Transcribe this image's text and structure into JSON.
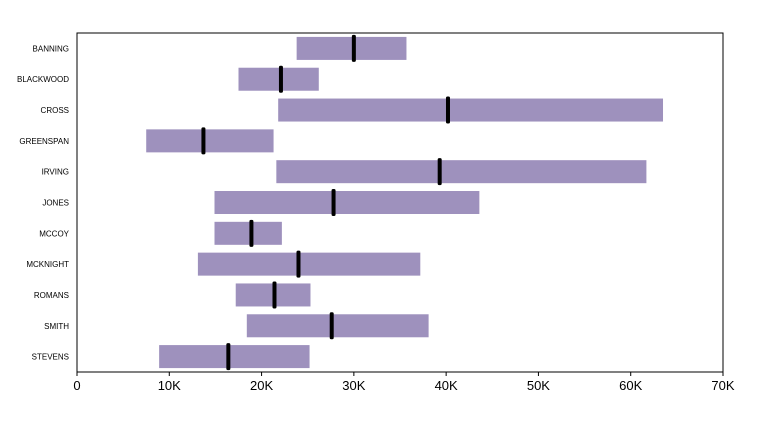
{
  "chart_data": {
    "type": "bar",
    "orientation": "horizontal",
    "subtype": "floating-range-with-marker",
    "title": "",
    "xlabel": "",
    "ylabel": "",
    "xlim": [
      0,
      70000
    ],
    "grid": false,
    "legend": "none",
    "colors": {
      "bar": "#9e91bd",
      "marker": "#000000",
      "frame": "#000000"
    },
    "x_ticks": [
      0,
      10000,
      20000,
      30000,
      40000,
      50000,
      60000,
      70000
    ],
    "x_tick_labels": [
      "0",
      "10K",
      "20K",
      "30K",
      "40K",
      "50K",
      "60K",
      "70K"
    ],
    "categories": [
      "BANNING",
      "BLACKWOOD",
      "CROSS",
      "GREENSPAN",
      "IRVING",
      "JONES",
      "MCCOY",
      "MCKNIGHT",
      "ROMANS",
      "SMITH",
      "STEVENS"
    ],
    "low": [
      23800,
      17500,
      21800,
      7500,
      21600,
      14900,
      14900,
      13100,
      17200,
      18400,
      8900
    ],
    "high": [
      35700,
      26200,
      63500,
      21300,
      61700,
      43600,
      22200,
      37200,
      25300,
      38100,
      25200
    ],
    "marker": [
      30000,
      22100,
      40200,
      13700,
      39300,
      27800,
      18900,
      24000,
      21400,
      27600,
      16400
    ]
  }
}
